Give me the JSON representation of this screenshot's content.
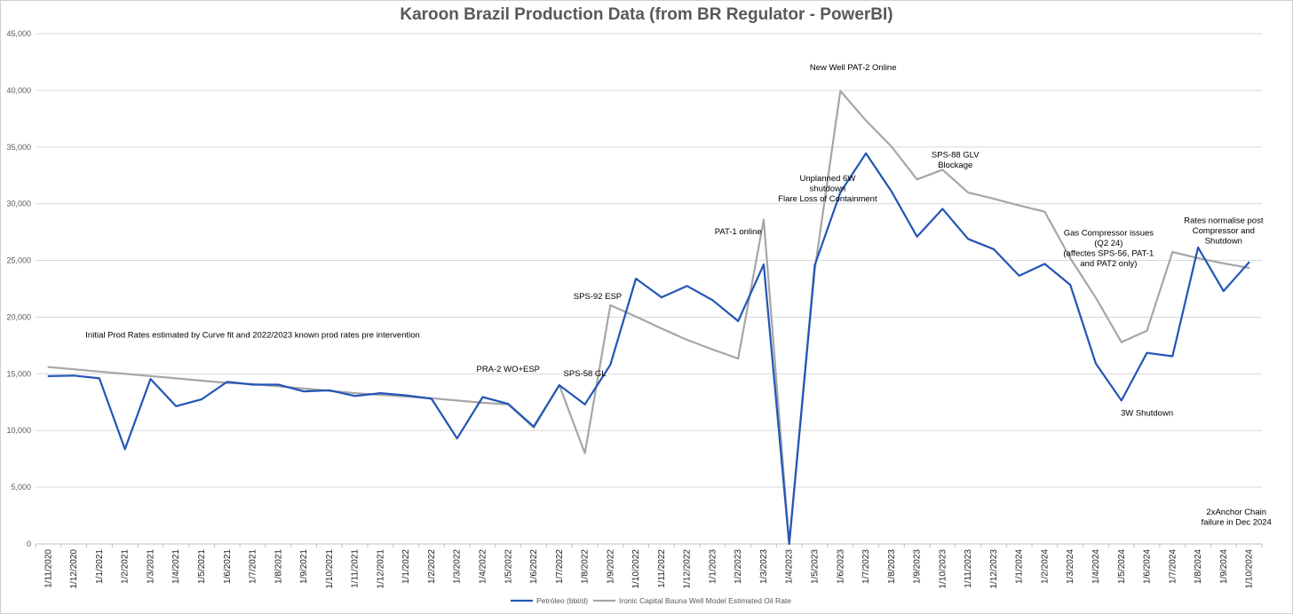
{
  "chart_data": {
    "type": "line",
    "title": "Karoon Brazil Production Data (from BR Regulator - PowerBI)",
    "xlabel": "",
    "ylabel": "",
    "ylim": [
      0,
      45000
    ],
    "yticks": [
      "0",
      "5,000",
      "10,000",
      "15,000",
      "20,000",
      "25,000",
      "30,000",
      "35,000",
      "40,000",
      "45,000"
    ],
    "grid": true,
    "legend_position": "bottom",
    "categories": [
      "1/11/2020",
      "1/12/2020",
      "1/1/2021",
      "1/2/2021",
      "1/3/2021",
      "1/4/2021",
      "1/5/2021",
      "1/6/2021",
      "1/7/2021",
      "1/8/2021",
      "1/9/2021",
      "1/10/2021",
      "1/11/2021",
      "1/12/2021",
      "1/1/2022",
      "1/2/2022",
      "1/3/2022",
      "1/4/2022",
      "1/5/2022",
      "1/6/2022",
      "1/7/2022",
      "1/8/2022",
      "1/9/2022",
      "1/10/2022",
      "1/11/2022",
      "1/12/2022",
      "1/1/2023",
      "1/2/2023",
      "1/3/2023",
      "1/4/2023",
      "1/5/2023",
      "1/6/2023",
      "1/7/2023",
      "1/8/2023",
      "1/9/2023",
      "1/10/2023",
      "1/11/2023",
      "1/12/2023",
      "1/1/2024",
      "1/2/2024",
      "1/3/2024",
      "1/4/2024",
      "1/5/2024",
      "1/6/2024",
      "1/7/2024",
      "1/8/2024",
      "1/9/2024",
      "1/10/2024"
    ],
    "series": [
      {
        "name": "Petróleo (bbl/d)",
        "color": "#2255b5",
        "values": [
          14800,
          14850,
          14600,
          8350,
          14550,
          12150,
          12750,
          14300,
          14050,
          14050,
          13450,
          13550,
          13050,
          13300,
          13100,
          12800,
          9300,
          12950,
          12350,
          10350,
          14000,
          12300,
          15800,
          23400,
          21750,
          22750,
          21500,
          19650,
          24650,
          0,
          24600,
          31000,
          34450,
          31100,
          27100,
          29550,
          26900,
          26000,
          23650,
          24700,
          22850,
          15900,
          12650,
          16850,
          16550,
          26150,
          22300,
          24850
        ]
      },
      {
        "name": "Ironic Capital Bauna Well Model Estimated Oil Rate",
        "color": "#a6a6a6",
        "values": [
          15600,
          15400,
          15200,
          15000,
          14800,
          14600,
          14400,
          14200,
          14100,
          13900,
          13700,
          13500,
          13300,
          13150,
          13000,
          12850,
          12650,
          12450,
          12300,
          10250,
          14000,
          8000,
          21050,
          20050,
          19000,
          18000,
          17150,
          16350,
          28600,
          0,
          24200,
          39950,
          37350,
          35050,
          32150,
          33000,
          31000,
          30450,
          29850,
          29300,
          25200,
          21700,
          17800,
          18800,
          25750,
          25200,
          24750,
          24350
        ]
      }
    ],
    "annotations": [
      {
        "lines": [
          "Initial Prod Rates estimated by Curve fit and 2022/2023 known prod rates pre intervention"
        ],
        "x_index": 8,
        "y": 18200
      },
      {
        "lines": [
          "PRA-2 WO+ESP"
        ],
        "x_index": 18,
        "y": 15200
      },
      {
        "lines": [
          "SPS-58 GL"
        ],
        "x_index": 21,
        "y": 14800
      },
      {
        "lines": [
          "SPS-92 ESP"
        ],
        "x_index": 21.5,
        "y": 21600
      },
      {
        "lines": [
          "PAT-1 online"
        ],
        "x_index": 27,
        "y": 27300
      },
      {
        "lines": [
          "Unplanned 6W",
          "shutdown",
          "Flare Loss of Containment"
        ],
        "x_index": 30.5,
        "y": 32000
      },
      {
        "lines": [
          "New Well PAT-2 Online"
        ],
        "x_index": 31.5,
        "y": 41800
      },
      {
        "lines": [
          "SPS-88 GLV",
          "Blockage"
        ],
        "x_index": 35.5,
        "y": 34100
      },
      {
        "lines": [
          "Gas Compressor issues",
          "(Q2 24)",
          "(affectes SPS-56, PAT-1",
          "and PAT2 only)"
        ],
        "x_index": 41.5,
        "y": 27200
      },
      {
        "lines": [
          "3W Shutdown"
        ],
        "x_index": 43,
        "y": 11300
      },
      {
        "lines": [
          "Rates normalise post",
          "Compressor and",
          "Shutdown"
        ],
        "x_index": 46,
        "y": 28300
      },
      {
        "lines": [
          "2xAnchor Chain",
          "failure in Dec 2024"
        ],
        "x_index": 46.5,
        "y": 2600
      }
    ]
  }
}
